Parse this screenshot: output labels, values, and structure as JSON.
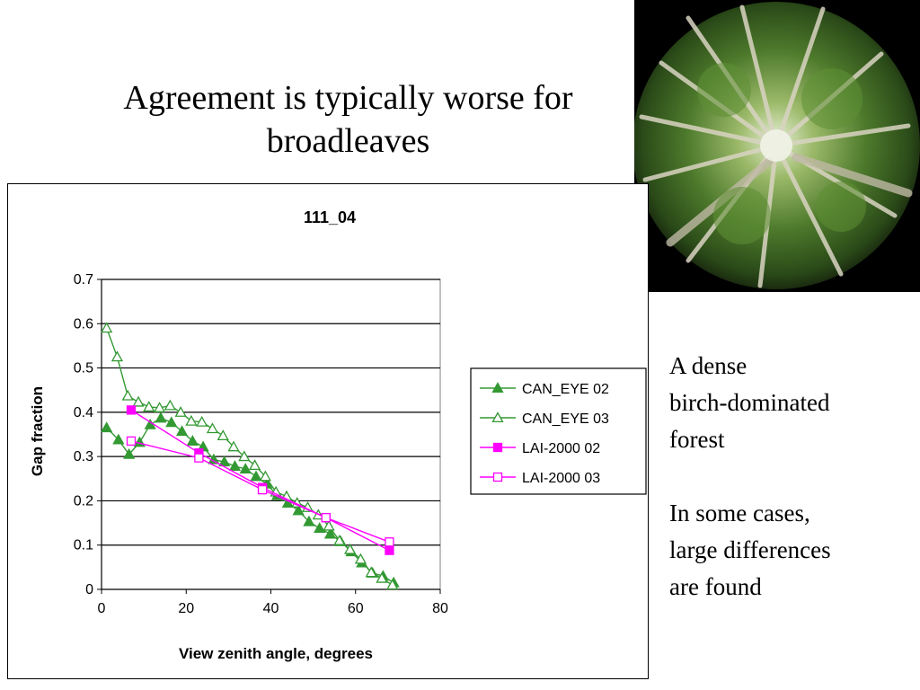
{
  "slide": {
    "title_line1": "Agreement is typically worse for",
    "title_line2": "broadleaves"
  },
  "caption": {
    "line1": "A dense",
    "line2": "birch-dominated",
    "line3": "forest",
    "line4": "In some cases,",
    "line5": "large differences",
    "line6": "are found"
  },
  "photo": {
    "description_icon": "fisheye-canopy-photo"
  },
  "chart_data": {
    "type": "line",
    "title": "111_04",
    "xlabel": "View zenith angle, degrees",
    "ylabel": "Gap fraction",
    "xlim": [
      0,
      80
    ],
    "ylim": [
      0,
      0.7
    ],
    "xticks": [
      "0",
      "20",
      "40",
      "60",
      "80"
    ],
    "yticks": [
      "0",
      "0.1",
      "0.2",
      "0.3",
      "0.4",
      "0.5",
      "0.6",
      "0.7"
    ],
    "grid": "horizontal",
    "legend_position": "right",
    "series": [
      {
        "name": "CAN_EYE 02",
        "color": "#339933",
        "marker": "filled-triangle",
        "points": [
          [
            1.2,
            0.365
          ],
          [
            4,
            0.338
          ],
          [
            6.5,
            0.305
          ],
          [
            9,
            0.332
          ],
          [
            11.5,
            0.372
          ],
          [
            14,
            0.387
          ],
          [
            16.5,
            0.377
          ],
          [
            19,
            0.357
          ],
          [
            21.5,
            0.335
          ],
          [
            24,
            0.322
          ],
          [
            26.5,
            0.293
          ],
          [
            29,
            0.288
          ],
          [
            31.5,
            0.278
          ],
          [
            34,
            0.272
          ],
          [
            36.5,
            0.255
          ],
          [
            39,
            0.238
          ],
          [
            41.5,
            0.212
          ],
          [
            44,
            0.195
          ],
          [
            46.5,
            0.178
          ],
          [
            49,
            0.153
          ],
          [
            51.5,
            0.138
          ],
          [
            54,
            0.125
          ],
          [
            56.5,
            0.108
          ],
          [
            59,
            0.085
          ],
          [
            61.5,
            0.06
          ],
          [
            64,
            0.037
          ],
          [
            66.5,
            0.03
          ],
          [
            69,
            0.015
          ]
        ]
      },
      {
        "name": "CAN_EYE 03",
        "color": "#339933",
        "marker": "open-triangle",
        "points": [
          [
            1.2,
            0.59
          ],
          [
            3.7,
            0.525
          ],
          [
            6.2,
            0.437
          ],
          [
            8.7,
            0.423
          ],
          [
            11.2,
            0.412
          ],
          [
            13.7,
            0.41
          ],
          [
            16.2,
            0.415
          ],
          [
            18.7,
            0.4
          ],
          [
            21.2,
            0.38
          ],
          [
            23.7,
            0.378
          ],
          [
            26.2,
            0.363
          ],
          [
            28.7,
            0.347
          ],
          [
            31.2,
            0.322
          ],
          [
            33.7,
            0.3
          ],
          [
            36.2,
            0.28
          ],
          [
            38.7,
            0.255
          ],
          [
            41.2,
            0.22
          ],
          [
            43.7,
            0.21
          ],
          [
            46.2,
            0.195
          ],
          [
            48.7,
            0.185
          ],
          [
            51.2,
            0.168
          ],
          [
            53.7,
            0.143
          ],
          [
            56.2,
            0.11
          ],
          [
            58.7,
            0.09
          ],
          [
            61.2,
            0.068
          ],
          [
            63.7,
            0.038
          ],
          [
            66.2,
            0.025
          ],
          [
            68.7,
            0.01
          ]
        ]
      },
      {
        "name": "LAI-2000 02",
        "color": "#ff00ff",
        "marker": "filled-square",
        "points": [
          [
            7,
            0.405
          ],
          [
            23,
            0.308
          ],
          [
            38,
            0.23
          ],
          [
            53,
            0.162
          ],
          [
            68,
            0.088
          ]
        ]
      },
      {
        "name": "LAI-2000 03",
        "color": "#ff00ff",
        "marker": "open-square",
        "points": [
          [
            7,
            0.335
          ],
          [
            23,
            0.297
          ],
          [
            38,
            0.225
          ],
          [
            53,
            0.162
          ],
          [
            68,
            0.107
          ]
        ]
      }
    ]
  }
}
